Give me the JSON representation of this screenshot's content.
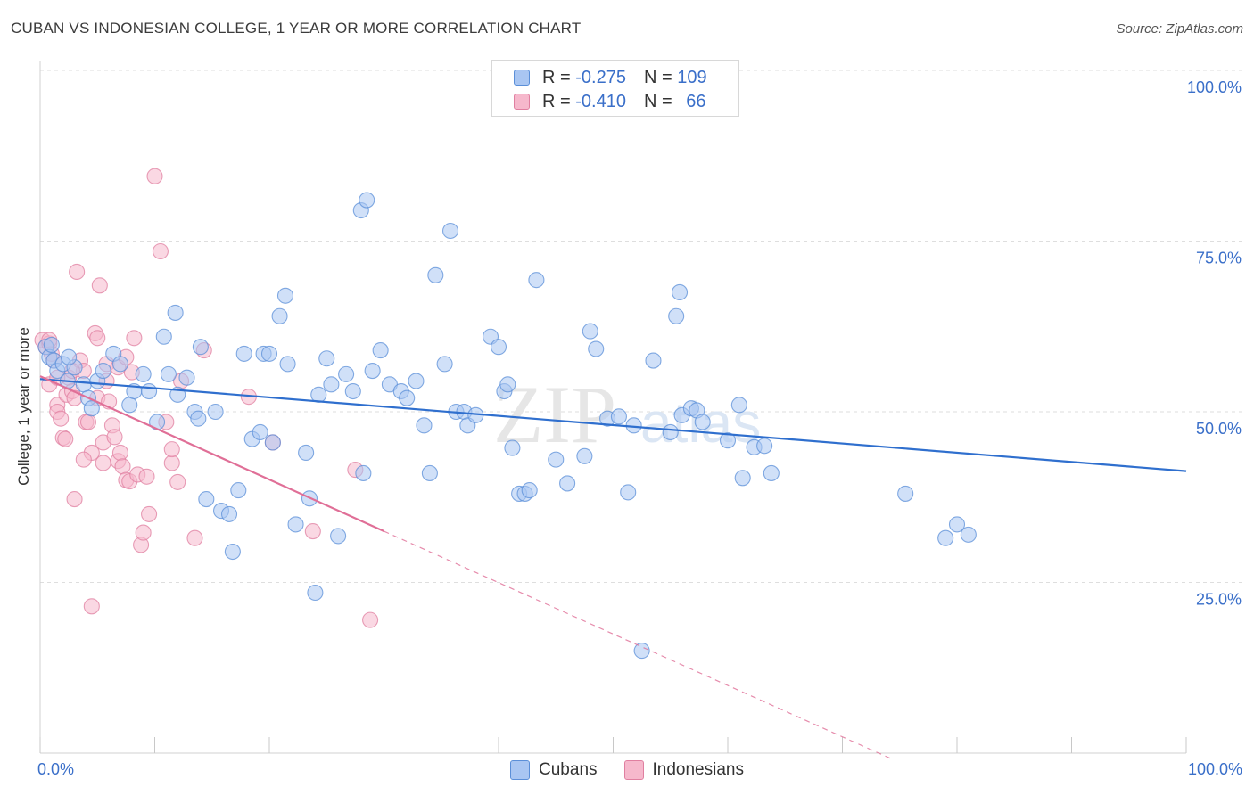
{
  "header": {
    "title": "CUBAN VS INDONESIAN COLLEGE, 1 YEAR OR MORE CORRELATION CHART",
    "source": "Source: ZipAtlas.com"
  },
  "legend_top": {
    "rows": [
      {
        "r_label": "R =",
        "r_value": "-0.275",
        "n_label": "N =",
        "n_value": "109"
      },
      {
        "r_label": "R =",
        "r_value": "-0.410",
        "n_label": "N =",
        "n_value": "66"
      }
    ]
  },
  "legend_bottom": [
    "Cubans",
    "Indonesians"
  ],
  "watermark": {
    "zip": "ZIP",
    "atlas": "atlas"
  },
  "colors": {
    "cubans_fill": "#a9c6f2",
    "cubans_stroke": "#5b8fd8",
    "cubans_line": "#2f6fce",
    "indonesians_fill": "#f6b8cc",
    "indonesians_stroke": "#e07fa0",
    "indonesians_line": "#e06f97",
    "axis_text": "#3a6fc9",
    "grid": "#dedede"
  },
  "chart_data": {
    "type": "scatter",
    "title": "CUBAN VS INDONESIAN COLLEGE, 1 YEAR OR MORE CORRELATION CHART",
    "xlabel": "",
    "ylabel": "College, 1 year or more",
    "xlim": [
      0,
      100
    ],
    "ylim": [
      0,
      100
    ],
    "x_tick_labels": [
      "0.0%",
      "100.0%"
    ],
    "y_ticks": [
      25,
      50,
      75,
      100
    ],
    "y_tick_labels": [
      "25.0%",
      "50.0%",
      "75.0%",
      "100.0%"
    ],
    "grid": true,
    "series": [
      {
        "name": "Cubans",
        "r": -0.275,
        "n": 109,
        "trend": {
          "x": [
            0,
            100
          ],
          "y": [
            54.8,
            41.3
          ]
        },
        "points": [
          [
            0.5,
            59.5
          ],
          [
            0.8,
            58
          ],
          [
            1.0,
            59.8
          ],
          [
            1.2,
            57.5
          ],
          [
            1.5,
            56
          ],
          [
            2.0,
            57
          ],
          [
            2.4,
            54.5
          ],
          [
            3.0,
            56.5
          ],
          [
            3.8,
            54
          ],
          [
            4.2,
            52
          ],
          [
            5.0,
            54.5
          ],
          [
            5.5,
            56
          ],
          [
            6.4,
            58.5
          ],
          [
            7.0,
            57
          ],
          [
            7.8,
            51
          ],
          [
            8.2,
            53
          ],
          [
            9.0,
            55.5
          ],
          [
            9.5,
            53
          ],
          [
            10.2,
            48.5
          ],
          [
            10.8,
            61
          ],
          [
            11.8,
            64.5
          ],
          [
            12.0,
            52.5
          ],
          [
            11.2,
            55.5
          ],
          [
            12.8,
            55
          ],
          [
            13.5,
            50
          ],
          [
            13.8,
            49
          ],
          [
            14.0,
            59.5
          ],
          [
            14.5,
            37.2
          ],
          [
            15.3,
            50
          ],
          [
            15.8,
            35.5
          ],
          [
            16.5,
            35
          ],
          [
            16.8,
            29.5
          ],
          [
            17.3,
            38.5
          ],
          [
            17.8,
            58.5
          ],
          [
            18.5,
            46
          ],
          [
            19.2,
            47
          ],
          [
            19.5,
            58.5
          ],
          [
            20.0,
            58.5
          ],
          [
            20.3,
            45.5
          ],
          [
            20.9,
            64
          ],
          [
            21.4,
            67
          ],
          [
            21.6,
            57
          ],
          [
            22.3,
            33.5
          ],
          [
            23.2,
            44
          ],
          [
            23.5,
            37.3
          ],
          [
            24.0,
            23.5
          ],
          [
            24.3,
            52.5
          ],
          [
            25.0,
            57.8
          ],
          [
            25.4,
            54
          ],
          [
            26.0,
            31.8
          ],
          [
            26.7,
            55.5
          ],
          [
            27.3,
            53
          ],
          [
            28.0,
            79.5
          ],
          [
            28.2,
            41
          ],
          [
            28.5,
            81
          ],
          [
            29.0,
            56
          ],
          [
            29.7,
            59
          ],
          [
            30.5,
            54
          ],
          [
            31.5,
            53
          ],
          [
            32.0,
            52
          ],
          [
            32.8,
            54.5
          ],
          [
            33.5,
            48
          ],
          [
            34.0,
            41
          ],
          [
            34.5,
            70
          ],
          [
            35.3,
            57
          ],
          [
            35.8,
            76.5
          ],
          [
            36.3,
            50
          ],
          [
            37.0,
            50
          ],
          [
            37.3,
            48
          ],
          [
            38.0,
            49.5
          ],
          [
            39.3,
            61
          ],
          [
            40.0,
            59.5
          ],
          [
            40.5,
            53
          ],
          [
            40.8,
            54
          ],
          [
            41.2,
            44.7
          ],
          [
            41.8,
            38
          ],
          [
            42.3,
            38
          ],
          [
            42.7,
            38.5
          ],
          [
            43.3,
            69.3
          ],
          [
            45.0,
            43
          ],
          [
            46.0,
            39.5
          ],
          [
            47.5,
            43.5
          ],
          [
            48.0,
            61.8
          ],
          [
            48.5,
            59.2
          ],
          [
            49.5,
            49
          ],
          [
            50.5,
            49.3
          ],
          [
            51.3,
            38.2
          ],
          [
            51.8,
            48
          ],
          [
            52.5,
            15
          ],
          [
            53.5,
            57.5
          ],
          [
            55.0,
            47
          ],
          [
            55.8,
            67.5
          ],
          [
            55.5,
            64
          ],
          [
            56.0,
            49.5
          ],
          [
            56.8,
            50.5
          ],
          [
            57.3,
            50.2
          ],
          [
            57.8,
            48.5
          ],
          [
            60.0,
            45.8
          ],
          [
            61.0,
            51
          ],
          [
            61.3,
            40.3
          ],
          [
            62.3,
            44.8
          ],
          [
            63.2,
            45
          ],
          [
            63.8,
            41
          ],
          [
            75.5,
            38
          ],
          [
            79.0,
            31.5
          ],
          [
            80.0,
            33.5
          ],
          [
            81.0,
            32
          ],
          [
            4.5,
            50.5
          ],
          [
            2.5,
            58
          ]
        ]
      },
      {
        "name": "Indonesians",
        "r": -0.41,
        "n": 66,
        "trend": {
          "x": [
            0,
            30
          ],
          "y": [
            55.2,
            32.5
          ]
        },
        "trend_dashed": {
          "x": [
            30,
            74.5
          ],
          "y": [
            32.5,
            -1.0
          ]
        },
        "points": [
          [
            0.2,
            60.5
          ],
          [
            0.5,
            59.5
          ],
          [
            0.8,
            60
          ],
          [
            0.8,
            54
          ],
          [
            1.2,
            57.5
          ],
          [
            1.5,
            51
          ],
          [
            1.5,
            50
          ],
          [
            1.8,
            49
          ],
          [
            2.0,
            46.2
          ],
          [
            2.2,
            46
          ],
          [
            2.3,
            52.5
          ],
          [
            2.5,
            55
          ],
          [
            2.8,
            53
          ],
          [
            3.0,
            52
          ],
          [
            3.0,
            37.2
          ],
          [
            3.2,
            70.5
          ],
          [
            3.5,
            57.5
          ],
          [
            3.8,
            56
          ],
          [
            4.0,
            48.5
          ],
          [
            4.2,
            48.5
          ],
          [
            4.5,
            44
          ],
          [
            4.5,
            21.5
          ],
          [
            4.8,
            61.5
          ],
          [
            5.0,
            60.8
          ],
          [
            5.0,
            52
          ],
          [
            5.2,
            68.5
          ],
          [
            5.5,
            45.5
          ],
          [
            5.5,
            42.5
          ],
          [
            5.8,
            54.5
          ],
          [
            6.0,
            51.5
          ],
          [
            6.3,
            48
          ],
          [
            6.5,
            46.3
          ],
          [
            6.8,
            42.8
          ],
          [
            7.0,
            44
          ],
          [
            7.2,
            42
          ],
          [
            7.5,
            40
          ],
          [
            7.8,
            39.8
          ],
          [
            8.0,
            55.8
          ],
          [
            8.2,
            60.8
          ],
          [
            8.5,
            40.8
          ],
          [
            8.8,
            30.5
          ],
          [
            9.0,
            32.3
          ],
          [
            9.3,
            40.5
          ],
          [
            10.0,
            84.5
          ],
          [
            10.5,
            73.5
          ],
          [
            11.0,
            48.5
          ],
          [
            11.5,
            42.5
          ],
          [
            12.0,
            39.7
          ],
          [
            12.3,
            54.5
          ],
          [
            13.5,
            31.5
          ],
          [
            14.3,
            59
          ],
          [
            18.2,
            52.2
          ],
          [
            20.3,
            45.5
          ],
          [
            23.8,
            32.5
          ],
          [
            27.5,
            41.5
          ],
          [
            28.8,
            19.5
          ],
          [
            5.8,
            57
          ],
          [
            6.8,
            56.5
          ],
          [
            3.8,
            43
          ],
          [
            1.0,
            58.5
          ],
          [
            2.8,
            56
          ],
          [
            7.5,
            58
          ],
          [
            1.5,
            55
          ],
          [
            0.8,
            60.5
          ],
          [
            11.5,
            44.5
          ],
          [
            9.5,
            35
          ]
        ]
      }
    ]
  }
}
